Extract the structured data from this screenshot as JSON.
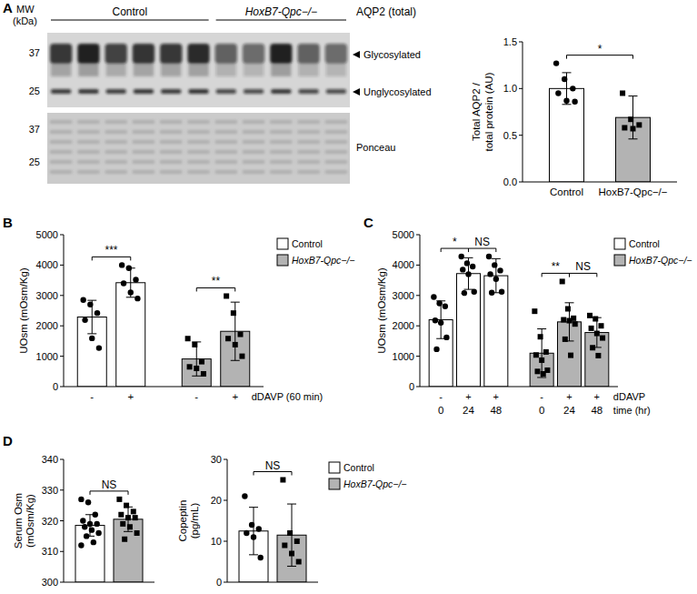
{
  "blot": {
    "panel": "A",
    "mw_label": [
      "MW",
      "(kDa)"
    ],
    "groups": [
      {
        "label": "Control",
        "lanes": 6
      },
      {
        "label": "HoxB7-Qpc−/−",
        "lanes": 5
      }
    ],
    "target": "AQP2 (total)",
    "markers": [
      37,
      25
    ],
    "bands": [
      "Glycosylated",
      "Unglycosylated"
    ],
    "stain": "Ponceau"
  },
  "chart_data": [
    {
      "type": "bar",
      "y_label": [
        "Total AQP2 /",
        "total protein (AU)"
      ],
      "categories": [
        "Control",
        "HoxB7-Qpc−/−"
      ],
      "ylim": [
        0,
        1.5
      ],
      "yticks": [
        {
          "value": 0,
          "label": "0.0"
        },
        {
          "value": 0.5,
          "label": "0.5"
        },
        {
          "value": 1,
          "label": "1.0"
        },
        {
          "value": 1.5,
          "label": "1.5"
        }
      ],
      "grid": false,
      "series": [
        {
          "name": "Control",
          "color": "#ffffff",
          "marker": "circle",
          "values": [
            1.0,
            null
          ],
          "errors": [
            0.17,
            null
          ],
          "points": [
            [
              1.27,
              1.1,
              1.0,
              0.95,
              0.87,
              0.86
            ],
            null
          ]
        },
        {
          "name": "HoxB7-Qpc−/−",
          "color": "#b3b3b3",
          "marker": "square",
          "values": [
            null,
            0.69
          ],
          "errors": [
            null,
            0.23
          ],
          "points": [
            null,
            [
              0.95,
              0.67,
              0.61,
              0.58,
              0.57
            ]
          ]
        }
      ],
      "annotations": [
        {
          "text": "*",
          "from": 0,
          "to": 1
        }
      ]
    },
    {
      "type": "bar",
      "panel": "B",
      "y_label": "UOsm (mOsm/Kg)",
      "x_label": "dDAVP (60 min)",
      "categories": [
        "-",
        "+",
        "-",
        "+"
      ],
      "ylim": [
        0,
        5000
      ],
      "yticks": [
        0,
        1000,
        2000,
        3000,
        4000,
        5000
      ],
      "grid": false,
      "legend": "right",
      "series": [
        {
          "name": "Control",
          "color": "#ffffff",
          "marker": "circle",
          "values": [
            2290,
            3420,
            null,
            null
          ],
          "errors": [
            550,
            480,
            null,
            null
          ],
          "points": [
            [
              2850,
              2700,
              2420,
              2190,
              1590,
              1270
            ],
            [
              4000,
              3900,
              3520,
              3400,
              3100,
              2900
            ],
            null,
            null
          ]
        },
        {
          "name": "HoxB7-Qpc−/−",
          "color": "#b3b3b3",
          "marker": "square",
          "values": [
            null,
            null,
            910,
            1820
          ],
          "errors": [
            null,
            null,
            560,
            960
          ],
          "points": [
            null,
            null,
            [
              1580,
              1380,
              820,
              650,
              600,
              420
            ],
            [
              2980,
              2420,
              1720,
              1580,
              1380,
              1000
            ]
          ]
        }
      ],
      "annotations": [
        {
          "text": "***",
          "from": 0,
          "to": 1
        },
        {
          "text": "**",
          "from": 2,
          "to": 3
        }
      ]
    },
    {
      "type": "bar",
      "panel": "C",
      "y_label": "UOsm (mOsm/Kg)",
      "x_label": "time (hr)",
      "category_rows": [
        {
          "label": "dDAVP",
          "values": [
            "-",
            "+",
            "+",
            "-",
            "+",
            "+"
          ]
        }
      ],
      "categories": [
        "0",
        "24",
        "48",
        "0",
        "24",
        "48"
      ],
      "ylim": [
        0,
        5000
      ],
      "yticks": [
        0,
        1000,
        2000,
        3000,
        4000,
        5000
      ],
      "grid": false,
      "legend": "right",
      "series": [
        {
          "name": "Control",
          "color": "#ffffff",
          "marker": "circle",
          "values": [
            2200,
            3720,
            3650,
            null,
            null,
            null
          ],
          "errors": [
            620,
            520,
            560,
            null,
            null,
            null
          ],
          "points": [
            [
              2950,
              2740,
              2640,
              2180,
              2100,
              1620,
              1230
            ],
            [
              4280,
              4060,
              3950,
              3850,
              3700,
              3120,
              3080
            ],
            [
              4280,
              4000,
              3820,
              3700,
              3540,
              3120,
              3090
            ],
            null,
            null,
            null
          ]
        },
        {
          "name": "HoxB7-Qpc−/−",
          "color": "#b3b3b3",
          "marker": "square",
          "values": [
            null,
            null,
            null,
            1100,
            2130,
            1780
          ],
          "errors": [
            null,
            null,
            null,
            800,
            630,
            490
          ],
          "points": [
            null,
            null,
            null,
            [
              2480,
              1640,
              1140,
              1040,
              870,
              540,
              500,
              420
            ],
            [
              3460,
              2560,
              2250,
              2200,
              2170,
              2060,
              1560,
              1030
            ],
            [
              2340,
              2230,
              2000,
              1920,
              1750,
              1600,
              1280,
              1020
            ]
          ]
        }
      ],
      "annotations": [
        {
          "text": "*",
          "from": 0,
          "to": 1
        },
        {
          "text": "NS",
          "from": 1,
          "to": 2
        },
        {
          "text": "**",
          "from": 3,
          "to": 4
        },
        {
          "text": "NS",
          "from": 4,
          "to": 5
        }
      ]
    },
    {
      "type": "bar",
      "panel": "D",
      "y_label": [
        "Serum Osm",
        "(mOsm/Kg)"
      ],
      "categories": [
        null,
        null
      ],
      "tick_labels": "y",
      "ylim": [
        300,
        340
      ],
      "yticks": [
        300,
        310,
        320,
        330,
        340
      ],
      "grid": false,
      "series": [
        {
          "name": "Control",
          "color": "#ffffff",
          "marker": "circle",
          "values": [
            318.5,
            null
          ],
          "errors": [
            3.5,
            null
          ],
          "points": [
            [
              327,
              326,
              322,
              320,
              319,
              319,
              318,
              317,
              316,
              315,
              313,
              312
            ],
            null
          ]
        },
        {
          "name": "HoxB7-Qpc−/−",
          "color": "#b3b3b3",
          "marker": "square",
          "values": [
            null,
            320.5
          ],
          "errors": [
            null,
            4.0
          ],
          "points": [
            null,
            [
              327,
              325,
              323,
              322,
              321,
              321,
              319,
              318,
              316,
              314
            ]
          ]
        }
      ],
      "annotations": [
        {
          "text": "NS",
          "from": 0,
          "to": 1
        }
      ]
    },
    {
      "type": "bar",
      "y_label": [
        "Copeptin",
        "(pg/mL)"
      ],
      "categories": [
        null,
        null
      ],
      "tick_labels": "y",
      "ylim": [
        0,
        30
      ],
      "yticks": [
        0,
        10,
        20,
        30
      ],
      "grid": false,
      "legend": "right",
      "series": [
        {
          "name": "Control",
          "color": "#ffffff",
          "marker": "circle",
          "values": [
            12.5,
            null
          ],
          "errors": [
            5.8,
            null
          ],
          "points": [
            [
              21,
              14,
              13,
              12,
              11,
              6
            ],
            null
          ]
        },
        {
          "name": "HoxB7-Qpc−/−",
          "color": "#b3b3b3",
          "marker": "square",
          "values": [
            null,
            11.5
          ],
          "errors": [
            null,
            7.6
          ],
          "points": [
            null,
            [
              25,
              12,
              10,
              9,
              7,
              5
            ]
          ]
        }
      ],
      "annotations": [
        {
          "text": "NS",
          "from": 0,
          "to": 1
        }
      ]
    }
  ]
}
